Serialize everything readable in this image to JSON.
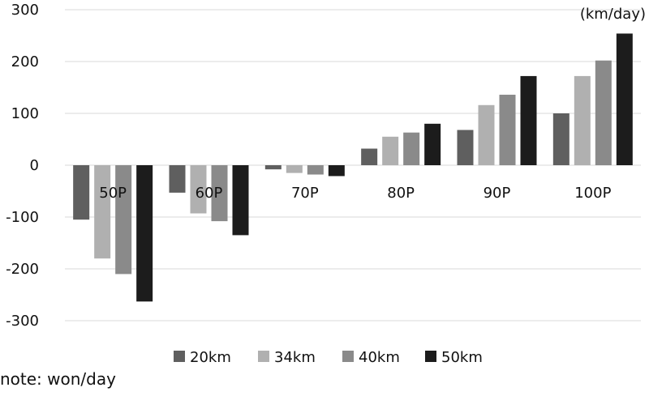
{
  "chart_data": {
    "type": "bar",
    "categories": [
      "50P",
      "60P",
      "70P",
      "80P",
      "90P",
      "100P"
    ],
    "series": [
      {
        "name": "20km",
        "color": "#5f5f5f",
        "values": [
          -105,
          -53,
          -8,
          32,
          68,
          100
        ]
      },
      {
        "name": "34km",
        "color": "#b0b0b0",
        "values": [
          -180,
          -93,
          -15,
          55,
          116,
          172
        ]
      },
      {
        "name": "40km",
        "color": "#8a8a8a",
        "values": [
          -210,
          -108,
          -18,
          63,
          136,
          202
        ]
      },
      {
        "name": "50km",
        "color": "#1c1c1c",
        "values": [
          -263,
          -135,
          -21,
          80,
          172,
          254
        ]
      }
    ],
    "ylim": [
      -300,
      300
    ],
    "yticks": [
      -300,
      -200,
      -100,
      0,
      100,
      200,
      300
    ],
    "unit_label": "(km/day)",
    "grid": true,
    "legend_position": "bottom"
  },
  "note": "note: won/day"
}
